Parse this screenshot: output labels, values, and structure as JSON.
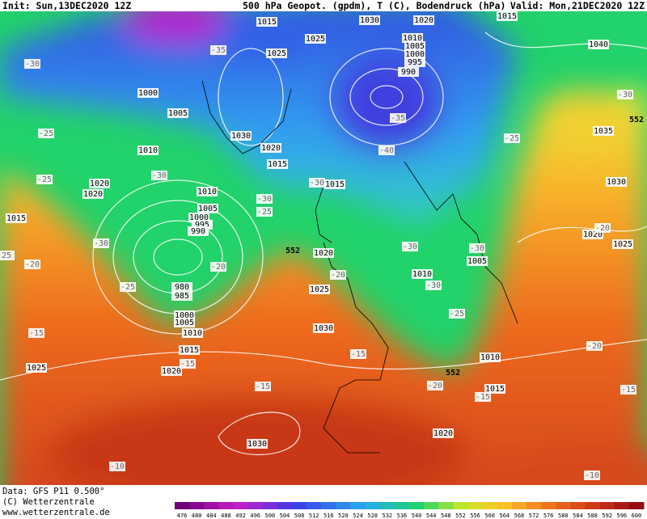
{
  "header": {
    "init": "Init: Sun,13DEC2020 12Z",
    "title": "500 hPa Geopot. (gpdm), T (C), Bodendruck (hPa)",
    "valid": "Valid: Mon,21DEC2020 12Z"
  },
  "footer": {
    "data": "Data: GFS P11 0.500°",
    "copyright": "(C) Wetterzentrale",
    "url": "www.wetterzentrale.de"
  },
  "colorbar": [
    476,
    480,
    484,
    488,
    492,
    496,
    500,
    504,
    508,
    512,
    516,
    520,
    524,
    528,
    532,
    536,
    540,
    544,
    548,
    552,
    556,
    560,
    564,
    568,
    572,
    576,
    580,
    584,
    588,
    592,
    596,
    600
  ],
  "isobars": [
    "1015",
    "1030",
    "1020",
    "1015",
    "1025",
    "1010",
    "1005",
    "1000",
    "995",
    "990",
    "1025",
    "1040",
    "1000",
    "1005",
    "1010",
    "1030",
    "1020",
    "1015",
    "1035",
    "1020",
    "1020",
    "1015",
    "1010",
    "1030",
    "1005",
    "1000",
    "995",
    "990",
    "1015",
    "1020",
    "1025",
    "1020",
    "1005",
    "1010",
    "980",
    "985",
    "1025",
    "1000",
    "1005",
    "1010",
    "1030",
    "1015",
    "1020",
    "1010",
    "1025",
    "1015",
    "1020",
    "1030"
  ],
  "temperatures": [
    "-30",
    "-35",
    "-25",
    "-35",
    "-40",
    "-25",
    "-30",
    "-25",
    "-30",
    "-30",
    "-25",
    "-30",
    "-20",
    "-20",
    "-30",
    "-30",
    "-30",
    "-25",
    "-20",
    "-25",
    "-20",
    "-20",
    "-15",
    "-15",
    "-15",
    "-15",
    "-20",
    "-15",
    "-15",
    "-10",
    "-10",
    "-30",
    "25"
  ],
  "contour_552": [
    "552",
    "552",
    "552"
  ]
}
